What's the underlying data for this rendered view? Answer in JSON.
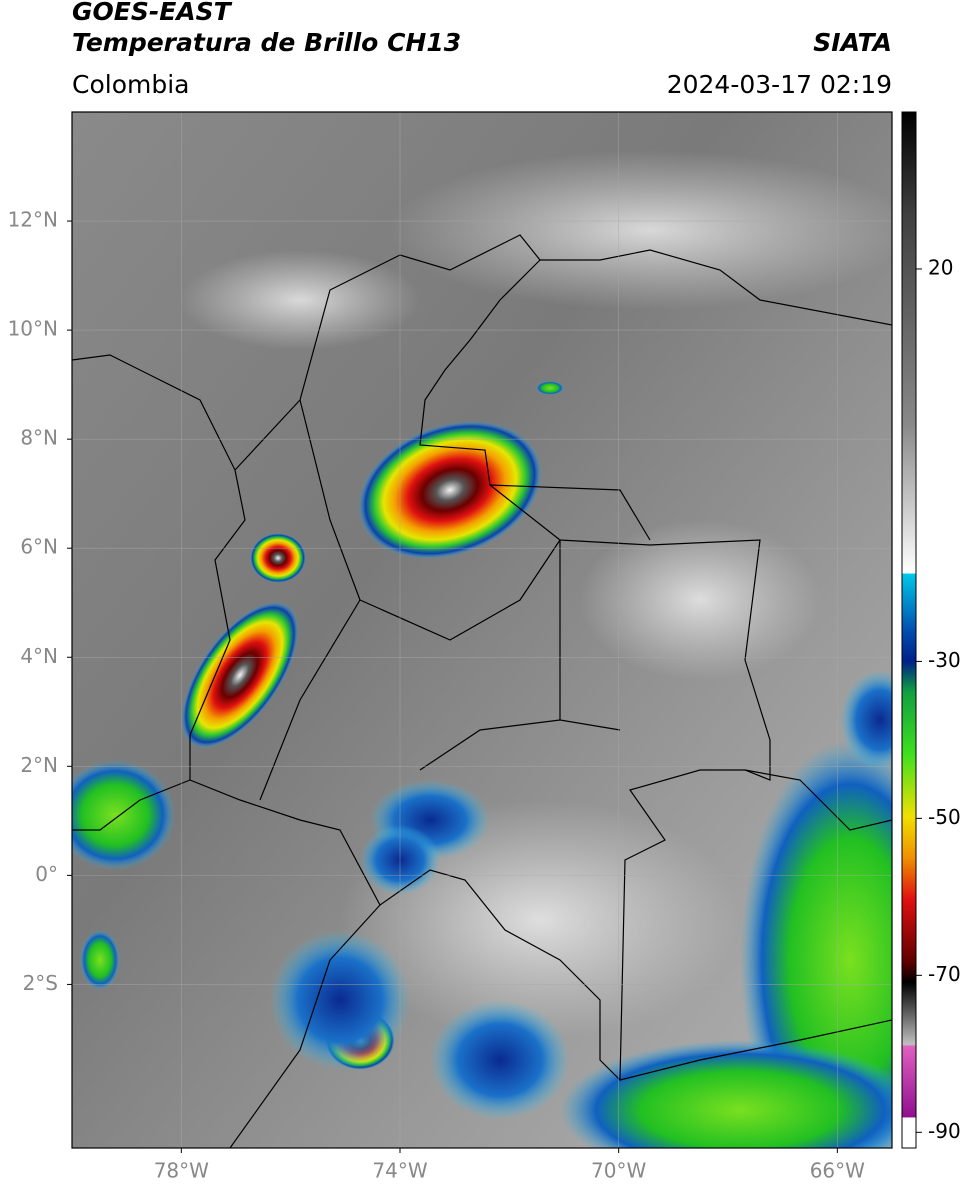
{
  "header": {
    "title": "GOES-EAST",
    "subtitle": "Temperatura de Brillo CH13",
    "source": "SIATA",
    "region": "Colombia",
    "datetime": "2024-03-17 02:19"
  },
  "map": {
    "xlim": [
      -80,
      -65
    ],
    "ylim": [
      -5,
      14
    ],
    "xticks": [
      {
        "value": -78,
        "label": "78°W"
      },
      {
        "value": -74,
        "label": "74°W"
      },
      {
        "value": -70,
        "label": "70°W"
      },
      {
        "value": -66,
        "label": "66°W"
      }
    ],
    "yticks": [
      {
        "value": 12,
        "label": "12°N"
      },
      {
        "value": 10,
        "label": "10°N"
      },
      {
        "value": 8,
        "label": "8°N"
      },
      {
        "value": 6,
        "label": "6°N"
      },
      {
        "value": 4,
        "label": "4°N"
      },
      {
        "value": 2,
        "label": "2°N"
      },
      {
        "value": 0,
        "label": "0°"
      },
      {
        "value": -2,
        "label": "2°S"
      }
    ],
    "grid": true
  },
  "colorbar": {
    "lim": [
      -92,
      40
    ],
    "ticks": [
      20,
      -30,
      -50,
      -70,
      -90
    ]
  }
}
